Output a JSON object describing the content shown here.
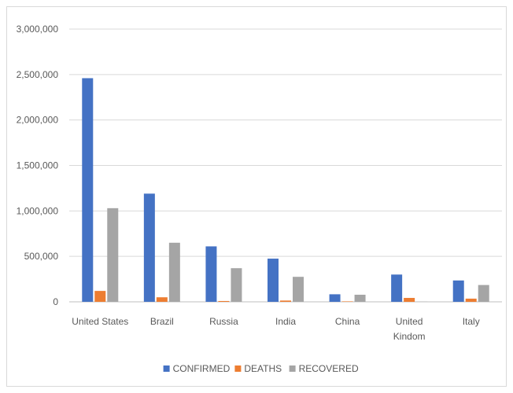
{
  "chart_data": {
    "type": "bar",
    "categories": [
      [
        "United States"
      ],
      [
        "Brazil"
      ],
      [
        "Russia"
      ],
      [
        "India"
      ],
      [
        "China"
      ],
      [
        "United",
        "Kindom"
      ],
      [
        "Italy"
      ]
    ],
    "series": [
      {
        "name": "CONFIRMED",
        "color": "#4472c4",
        "values": [
          2460000,
          1190000,
          610000,
          475000,
          83000,
          300000,
          235000
        ]
      },
      {
        "name": "DEATHS",
        "color": "#ed7d31",
        "values": [
          120000,
          50000,
          9000,
          14000,
          5000,
          43000,
          35000
        ]
      },
      {
        "name": "RECOVERED",
        "color": "#a5a5a5",
        "values": [
          1030000,
          650000,
          370000,
          275000,
          78000,
          1500,
          185000
        ]
      }
    ],
    "yticks": [
      "0",
      "500,000",
      "1,000,000",
      "1,500,000",
      "2,000,000",
      "2,500,000",
      "3,000,000"
    ],
    "ylim": [
      0,
      3000000
    ],
    "grid": true,
    "legend": "bottom"
  }
}
